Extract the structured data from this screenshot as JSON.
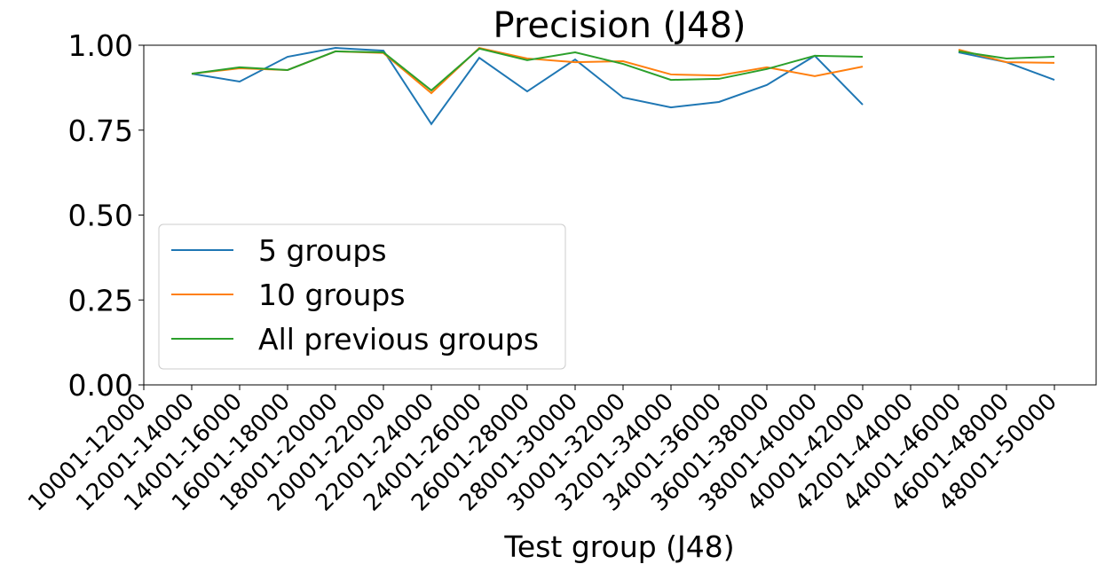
{
  "chart_data": {
    "type": "line",
    "title": "Precision (J48)",
    "x_label": "Test group (J48)",
    "categories": [
      "10001-12000",
      "12001-14000",
      "14001-16000",
      "16001-18000",
      "18001-20000",
      "20001-22000",
      "22001-24000",
      "24001-26000",
      "26001-28000",
      "28001-30000",
      "30001-32000",
      "32001-34000",
      "34001-36000",
      "36001-38000",
      "38001-40000",
      "40001-42000",
      "42001-44000",
      "44001-46000",
      "46001-48000",
      "48001-50000"
    ],
    "series": [
      {
        "name": "5 groups",
        "color": "#1f77b4",
        "values": [
          null,
          0.916,
          0.893,
          0.966,
          0.992,
          0.984,
          0.768,
          0.963,
          0.864,
          0.958,
          0.846,
          0.817,
          0.833,
          0.883,
          0.969,
          0.825,
          null,
          0.979,
          0.95,
          0.898
        ]
      },
      {
        "name": "10 groups",
        "color": "#ff7f0e",
        "values": [
          null,
          0.916,
          0.932,
          0.927,
          0.982,
          0.977,
          0.859,
          0.992,
          0.961,
          0.95,
          0.953,
          0.914,
          0.911,
          0.935,
          0.909,
          0.937,
          null,
          0.987,
          0.95,
          0.948
        ]
      },
      {
        "name": "All previous groups",
        "color": "#2ca02c",
        "values": [
          null,
          0.916,
          0.935,
          0.927,
          0.982,
          0.979,
          0.867,
          0.99,
          0.956,
          0.979,
          0.945,
          0.898,
          0.901,
          0.93,
          0.969,
          0.966,
          null,
          0.982,
          0.961,
          0.966
        ]
      }
    ],
    "ylim": [
      0,
      1
    ],
    "yticks": [
      {
        "value": 0,
        "label": "0.00"
      },
      {
        "value": 0.25,
        "label": "0.25"
      },
      {
        "value": 0.5,
        "label": "0.50"
      },
      {
        "value": 0.75,
        "label": "0.75"
      },
      {
        "value": 1,
        "label": "1.00"
      }
    ],
    "legend": "lower left",
    "grid": false
  }
}
